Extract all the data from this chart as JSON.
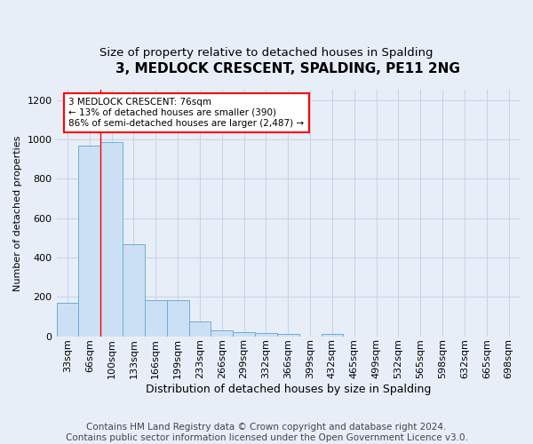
{
  "title1": "3, MEDLOCK CRESCENT, SPALDING, PE11 2NG",
  "title2": "Size of property relative to detached houses in Spalding",
  "xlabel": "Distribution of detached houses by size in Spalding",
  "ylabel": "Number of detached properties",
  "footer": "Contains HM Land Registry data © Crown copyright and database right 2024.\nContains public sector information licensed under the Open Government Licence v3.0.",
  "categories": [
    "33sqm",
    "66sqm",
    "100sqm",
    "133sqm",
    "166sqm",
    "199sqm",
    "233sqm",
    "266sqm",
    "299sqm",
    "332sqm",
    "366sqm",
    "399sqm",
    "432sqm",
    "465sqm",
    "499sqm",
    "532sqm",
    "565sqm",
    "598sqm",
    "632sqm",
    "665sqm",
    "698sqm"
  ],
  "values": [
    170,
    970,
    985,
    465,
    185,
    185,
    75,
    28,
    22,
    15,
    10,
    0,
    12,
    0,
    0,
    0,
    0,
    0,
    0,
    0,
    0
  ],
  "bar_color": "#cce0f5",
  "bar_edge_color": "#6baed6",
  "vline_x": 1.5,
  "vline_color": "red",
  "annotation_text": "3 MEDLOCK CRESCENT: 76sqm\n← 13% of detached houses are smaller (390)\n86% of semi-detached houses are larger (2,487) →",
  "annotation_box_color": "white",
  "annotation_box_edge_color": "red",
  "ylim": [
    0,
    1250
  ],
  "yticks": [
    0,
    200,
    400,
    600,
    800,
    1000,
    1200
  ],
  "background_color": "#e8eef8",
  "grid_color": "#c8d4e8",
  "title1_fontsize": 11,
  "title2_fontsize": 9.5,
  "xlabel_fontsize": 9,
  "ylabel_fontsize": 8,
  "footer_fontsize": 7.5,
  "tick_fontsize": 8,
  "annot_fontsize": 7.5
}
